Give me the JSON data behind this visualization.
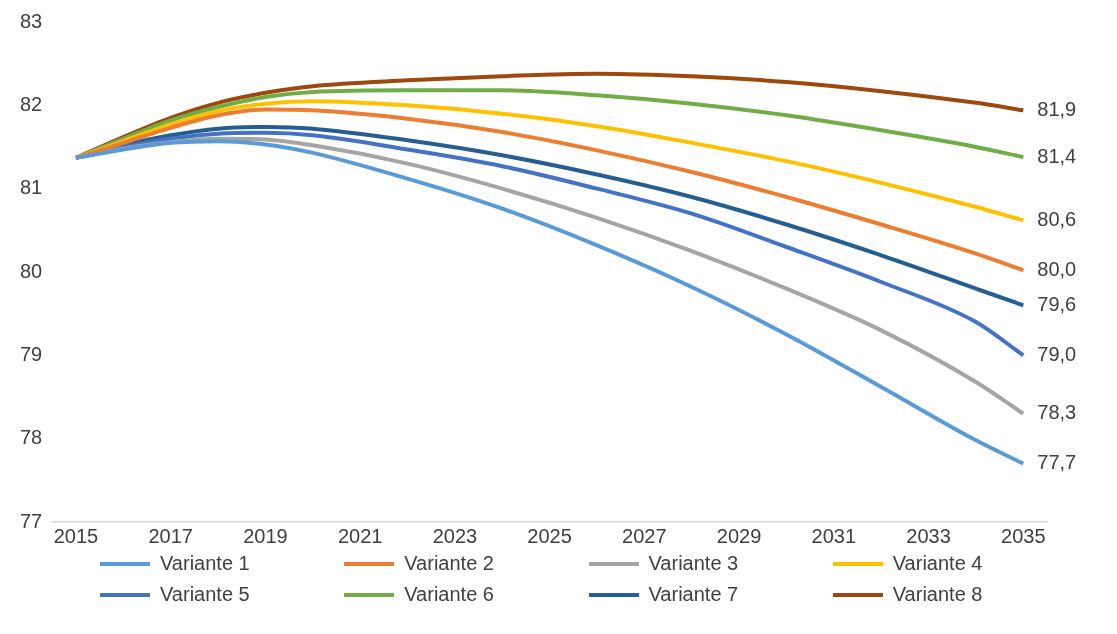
{
  "chart_data": {
    "type": "line",
    "x": [
      2015,
      2016,
      2017,
      2018,
      2019,
      2020,
      2022,
      2024,
      2026,
      2028,
      2030,
      2032,
      2034,
      2035
    ],
    "xlim": [
      2014.5,
      2035.5
    ],
    "xticks": [
      2015,
      2017,
      2019,
      2021,
      2023,
      2025,
      2027,
      2029,
      2031,
      2033,
      2035
    ],
    "ylim": [
      77,
      83
    ],
    "yticks": [
      77,
      78,
      79,
      80,
      81,
      82,
      83
    ],
    "grid": false,
    "legend": "bottom",
    "marker": "none",
    "line_style": "solid",
    "series": [
      {
        "name": "Variante 1",
        "color": "#5b9bd5",
        "values": [
          81.37,
          81.47,
          81.55,
          81.57,
          81.53,
          81.43,
          81.12,
          80.76,
          80.32,
          79.82,
          79.25,
          78.62,
          77.98,
          77.7
        ],
        "value_labels": [
          null,
          null,
          null,
          null,
          null,
          null,
          null,
          null,
          null,
          null,
          null,
          null,
          null,
          "77,7"
        ]
      },
      {
        "name": "Variante 2",
        "color": "#ed7d31",
        "values": [
          81.37,
          81.55,
          81.73,
          81.88,
          81.95,
          81.94,
          81.84,
          81.68,
          81.46,
          81.2,
          80.9,
          80.57,
          80.22,
          80.02
        ],
        "value_labels": [
          null,
          null,
          null,
          null,
          null,
          null,
          null,
          null,
          null,
          null,
          null,
          null,
          null,
          "80,0"
        ]
      },
      {
        "name": "Variante 3",
        "color": "#a5a5a5",
        "values": [
          81.37,
          81.48,
          81.56,
          81.6,
          81.59,
          81.52,
          81.3,
          81.0,
          80.65,
          80.25,
          79.8,
          79.3,
          78.68,
          78.3
        ],
        "value_labels": [
          null,
          null,
          null,
          null,
          null,
          null,
          null,
          null,
          null,
          null,
          null,
          null,
          null,
          "78,3"
        ]
      },
      {
        "name": "Variante 4",
        "color": "#ffc000",
        "values": [
          81.37,
          81.57,
          81.77,
          81.93,
          82.02,
          82.05,
          82.0,
          81.9,
          81.75,
          81.55,
          81.33,
          81.07,
          80.78,
          80.62
        ],
        "value_labels": [
          null,
          null,
          null,
          null,
          null,
          null,
          null,
          null,
          null,
          null,
          null,
          null,
          null,
          "80,6"
        ]
      },
      {
        "name": "Variante 5",
        "color": "#4472c4",
        "values": [
          81.37,
          81.5,
          81.6,
          81.66,
          81.67,
          81.64,
          81.47,
          81.27,
          81.0,
          80.7,
          80.3,
          79.88,
          79.4,
          79.0
        ],
        "value_labels": [
          null,
          null,
          null,
          null,
          null,
          null,
          null,
          null,
          null,
          null,
          null,
          null,
          null,
          "79,0"
        ]
      },
      {
        "name": "Variante 6",
        "color": "#70ad47",
        "values": [
          81.37,
          81.6,
          81.82,
          81.98,
          82.1,
          82.16,
          82.18,
          82.18,
          82.12,
          82.02,
          81.88,
          81.7,
          81.5,
          81.38
        ],
        "value_labels": [
          null,
          null,
          null,
          null,
          null,
          null,
          null,
          null,
          null,
          null,
          null,
          null,
          null,
          "81,4"
        ]
      },
      {
        "name": "Variante 7",
        "color": "#255e91",
        "values": [
          81.37,
          81.52,
          81.64,
          81.72,
          81.74,
          81.72,
          81.58,
          81.4,
          81.17,
          80.9,
          80.57,
          80.2,
          79.8,
          79.6
        ],
        "value_labels": [
          null,
          null,
          null,
          null,
          null,
          null,
          null,
          null,
          null,
          null,
          null,
          null,
          null,
          "79,6"
        ]
      },
      {
        "name": "Variante 8",
        "color": "#9e480e",
        "values": [
          81.37,
          81.62,
          81.85,
          82.03,
          82.15,
          82.23,
          82.3,
          82.35,
          82.38,
          82.35,
          82.28,
          82.17,
          82.03,
          81.94
        ],
        "value_labels": [
          null,
          null,
          null,
          null,
          null,
          null,
          null,
          null,
          null,
          null,
          null,
          null,
          null,
          "81,9"
        ]
      }
    ]
  }
}
